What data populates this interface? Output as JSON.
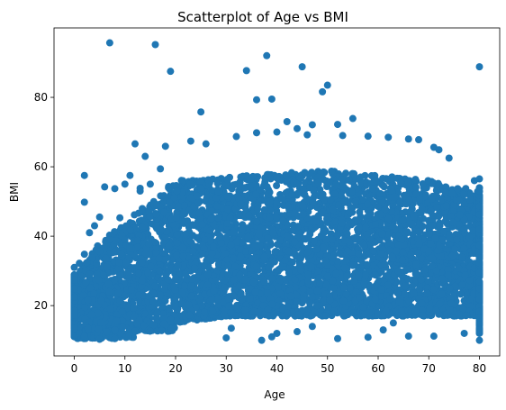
{
  "chart_data": {
    "type": "scatter",
    "title": "Scatterplot of Age vs BMI",
    "xlabel": "Age",
    "ylabel": "BMI",
    "xlim": [
      -4,
      84
    ],
    "ylim": [
      5.5,
      100
    ],
    "xticks": [
      0,
      10,
      20,
      30,
      40,
      50,
      60,
      70,
      80
    ],
    "yticks": [
      20,
      40,
      60,
      80
    ],
    "grid": false,
    "marker_color": "#1f77b4",
    "series": [
      {
        "description_of_density": "dense band",
        "points": [
          [
            7,
            95.7
          ],
          [
            16,
            95.2
          ],
          [
            19,
            87.5
          ],
          [
            34,
            87.7
          ],
          [
            38,
            92.0
          ],
          [
            45,
            88.8
          ],
          [
            50,
            83.5
          ],
          [
            49,
            81.6
          ],
          [
            80,
            88.8
          ],
          [
            36,
            79.3
          ],
          [
            39,
            79.5
          ],
          [
            25,
            75.8
          ],
          [
            55,
            73.9
          ],
          [
            42,
            73.0
          ],
          [
            52,
            72.2
          ],
          [
            44,
            71.0
          ],
          [
            47,
            72.1
          ],
          [
            12,
            66.6
          ],
          [
            18,
            65.9
          ],
          [
            23,
            67.4
          ],
          [
            26,
            66.6
          ],
          [
            32,
            68.7
          ],
          [
            36,
            69.8
          ],
          [
            40,
            70.0
          ],
          [
            46,
            69.2
          ],
          [
            53,
            69.0
          ],
          [
            58,
            68.8
          ],
          [
            62,
            68.5
          ],
          [
            66,
            68.0
          ],
          [
            68,
            67.8
          ],
          [
            71,
            65.6
          ],
          [
            72,
            64.9
          ],
          [
            74,
            62.5
          ],
          [
            79,
            56.0
          ],
          [
            80,
            56.5
          ],
          [
            14,
            63.0
          ],
          [
            11,
            57.5
          ],
          [
            6,
            54.2
          ],
          [
            2,
            57.5
          ],
          [
            2,
            49.8
          ],
          [
            4,
            43.0
          ],
          [
            5,
            45.5
          ],
          [
            9,
            45.3
          ],
          [
            8,
            53.7
          ],
          [
            13,
            53.8
          ],
          [
            13,
            53.0
          ],
          [
            10,
            55.0
          ],
          [
            15,
            55.0
          ],
          [
            17,
            59.4
          ],
          [
            0,
            27.4
          ],
          [
            0,
            31.0
          ],
          [
            1,
            32.2
          ],
          [
            2,
            34.8
          ],
          [
            3,
            41.0
          ],
          [
            5,
            35.6
          ],
          [
            7,
            39.0
          ],
          [
            10,
            39.0
          ],
          [
            0,
            11.5
          ],
          [
            0,
            13.5
          ],
          [
            1,
            12.0
          ],
          [
            2,
            11.2
          ],
          [
            5,
            10.3
          ],
          [
            8,
            10.5
          ],
          [
            12,
            12.6
          ],
          [
            15,
            12.7
          ],
          [
            30,
            10.7
          ],
          [
            37,
            10.0
          ],
          [
            39,
            11.0
          ],
          [
            40,
            12.0
          ],
          [
            52,
            10.5
          ],
          [
            58,
            10.9
          ],
          [
            66,
            11.2
          ],
          [
            71,
            11.2
          ],
          [
            80,
            10.0
          ],
          [
            77,
            12.0
          ],
          [
            31,
            13.5
          ],
          [
            44,
            12.5
          ],
          [
            47,
            14.0
          ],
          [
            61,
            13.0
          ],
          [
            63,
            15.0
          ]
        ]
      }
    ]
  }
}
